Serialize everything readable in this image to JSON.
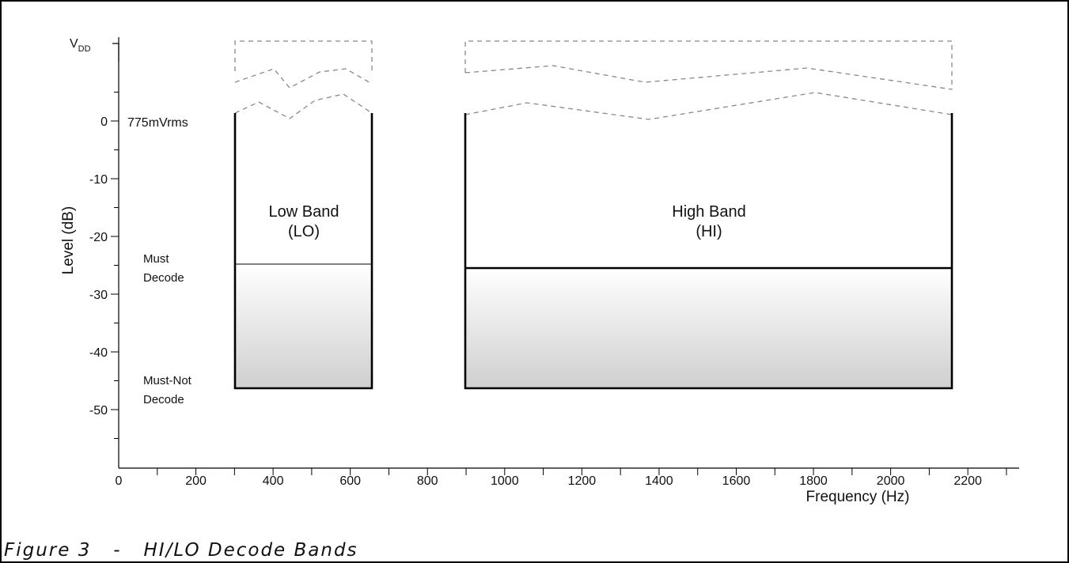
{
  "chart_data": {
    "type": "diagram",
    "caption": "Figure 3   -   HI/LO Decode Bands",
    "xlabel": "Frequency (Hz)",
    "ylabel": "Level (dB)",
    "xlim": [
      0,
      2300
    ],
    "ylim": [
      -60,
      0
    ],
    "x_ticks": [
      0,
      200,
      400,
      600,
      800,
      1000,
      1200,
      1400,
      1600,
      1800,
      2000,
      2200
    ],
    "y_ticks": [
      0,
      -10,
      -20,
      -30,
      -40,
      -50
    ],
    "annotations": {
      "vdd_main": "V",
      "vdd_sub": "DD",
      "reference": "775mVrms",
      "must_decode": [
        "Must",
        "Decode"
      ],
      "must_not_decode": [
        "Must-Not",
        "Decode"
      ]
    },
    "bands": [
      {
        "name": "Low Band",
        "abbr": "(LO)",
        "x_range": [
          300,
          655
        ],
        "must_decode_threshold_db": -25,
        "must_not_decode_db": -46
      },
      {
        "name": "High Band",
        "abbr": "(HI)",
        "x_range": [
          900,
          2160
        ],
        "must_decode_threshold_db": -25.5,
        "must_not_decode_db": -46
      }
    ]
  }
}
